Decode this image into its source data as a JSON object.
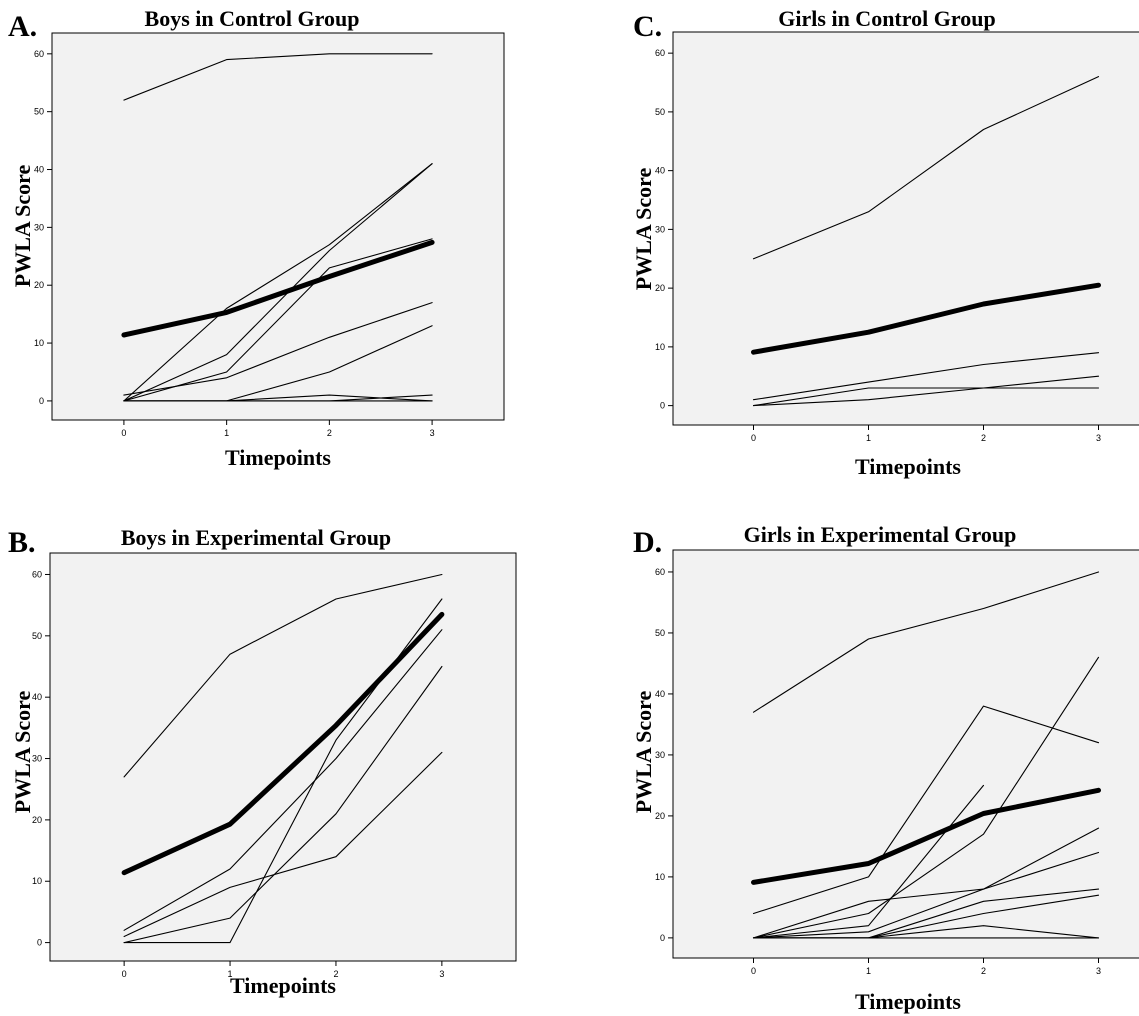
{
  "figure": {
    "panels": [
      {
        "letter": "A.",
        "title": "Boys in Control Group"
      },
      {
        "letter": "B.",
        "title": "Boys in Experimental Group"
      },
      {
        "letter": "C.",
        "title": "Girls in Control Group"
      },
      {
        "letter": "D.",
        "title": "Girls in Experimental Group"
      }
    ]
  },
  "chart_data": [
    {
      "type": "line",
      "letter": "A.",
      "title": "Boys in Control Group",
      "xlabel": "Timepoints",
      "ylabel": "PWLA Score",
      "x": [
        0,
        1,
        2,
        3
      ],
      "x_tick_labels": [
        "0",
        "1",
        "2",
        "3"
      ],
      "y_ticks": [
        0,
        10,
        20,
        30,
        40,
        50,
        60
      ],
      "xlim": [
        -0.7,
        3.7
      ],
      "ylim": [
        -3.3,
        63.6
      ],
      "grid": false,
      "series": [
        {
          "values": [
            52,
            59,
            60,
            60
          ]
        },
        {
          "values": [
            0,
            16,
            27,
            41
          ]
        },
        {
          "values": [
            0,
            8,
            26,
            41
          ]
        },
        {
          "values": [
            0,
            5,
            23,
            28
          ]
        },
        {
          "values": [
            1,
            4,
            11,
            17
          ]
        },
        {
          "values": [
            0,
            0,
            5,
            13
          ]
        },
        {
          "values": [
            0,
            0,
            1,
            0
          ]
        },
        {
          "values": [
            0,
            0,
            0,
            1
          ]
        },
        {
          "values": [
            0,
            0,
            0,
            0
          ]
        }
      ],
      "mean_series": {
        "values": [
          11.4,
          15.3,
          21.5,
          27.4
        ]
      }
    },
    {
      "type": "line",
      "letter": "B.",
      "title": "Boys in Experimental Group",
      "xlabel": "Timepoints",
      "ylabel": "PWLA Score",
      "x": [
        0,
        1,
        2,
        3
      ],
      "x_tick_labels": [
        "0",
        "1",
        "2",
        "3"
      ],
      "y_ticks": [
        0,
        10,
        20,
        30,
        40,
        50,
        60
      ],
      "xlim": [
        -0.7,
        3.7
      ],
      "ylim": [
        -3.0,
        63.5
      ],
      "grid": false,
      "series": [
        {
          "values": [
            27,
            47,
            56,
            60
          ]
        },
        {
          "values": [
            2,
            12,
            30,
            51
          ]
        },
        {
          "values": [
            0,
            0,
            33,
            56
          ]
        },
        {
          "values": [
            0,
            4,
            21,
            45
          ]
        },
        {
          "values": [
            1,
            9,
            14,
            31
          ]
        }
      ],
      "mean_series": {
        "values": [
          11.4,
          19.3,
          35.4,
          53.5
        ]
      }
    },
    {
      "type": "line",
      "letter": "C.",
      "title": "Girls in Control Group",
      "xlabel": "Timepoints",
      "ylabel": "PWLA Score",
      "x": [
        0,
        1,
        2,
        3
      ],
      "x_tick_labels": [
        "0",
        "1",
        "2",
        "3"
      ],
      "y_ticks": [
        0,
        10,
        20,
        30,
        40,
        50,
        60
      ],
      "xlim": [
        -0.7,
        3.7
      ],
      "ylim": [
        -3.3,
        63.6
      ],
      "grid": false,
      "series": [
        {
          "values": [
            25,
            33,
            47,
            56
          ]
        },
        {
          "values": [
            1,
            4,
            7,
            9
          ]
        },
        {
          "values": [
            0,
            3,
            3,
            3
          ]
        },
        {
          "values": [
            0,
            1,
            3,
            5
          ]
        }
      ],
      "mean_series": {
        "values": [
          9.1,
          12.5,
          17.3,
          20.5
        ]
      }
    },
    {
      "type": "line",
      "letter": "D.",
      "title": "Girls in Experimental Group",
      "xlabel": "Timepoints",
      "ylabel": "PWLA Score",
      "x": [
        0,
        1,
        2,
        3
      ],
      "x_tick_labels": [
        "0",
        "1",
        "2",
        "3"
      ],
      "y_ticks": [
        0,
        10,
        20,
        30,
        40,
        50,
        60
      ],
      "xlim": [
        -0.7,
        3.7
      ],
      "ylim": [
        -3.3,
        63.6
      ],
      "grid": false,
      "series": [
        {
          "values": [
            37,
            49,
            54,
            60
          ]
        },
        {
          "values": [
            4,
            10,
            38,
            32
          ]
        },
        {
          "values": [
            0,
            4,
            17,
            46
          ]
        },
        {
          "values": [
            0,
            2,
            25,
            null
          ]
        },
        {
          "values": [
            0,
            6,
            8,
            18
          ]
        },
        {
          "values": [
            0,
            1,
            8,
            14
          ]
        },
        {
          "values": [
            0,
            0,
            6,
            8
          ]
        },
        {
          "values": [
            0,
            0,
            4,
            7
          ]
        },
        {
          "values": [
            0,
            0,
            2,
            0
          ]
        },
        {
          "values": [
            0,
            0,
            0,
            0
          ]
        }
      ],
      "mean_series": {
        "values": [
          9.1,
          12.2,
          20.4,
          24.2
        ]
      }
    }
  ]
}
